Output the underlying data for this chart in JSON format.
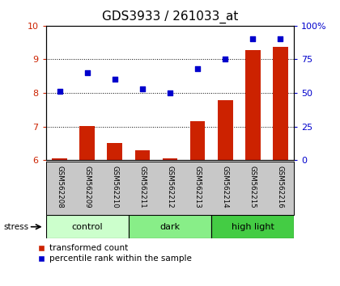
{
  "title": "GDS3933 / 261033_at",
  "samples": [
    "GSM562208",
    "GSM562209",
    "GSM562210",
    "GSM562211",
    "GSM562212",
    "GSM562213",
    "GSM562214",
    "GSM562215",
    "GSM562216"
  ],
  "transformed_count": [
    6.06,
    7.02,
    6.5,
    6.3,
    6.05,
    7.15,
    7.78,
    9.28,
    9.38
  ],
  "percentile_rank": [
    51,
    65,
    60,
    53,
    50,
    68,
    75,
    90,
    90
  ],
  "ylim_left": [
    6,
    10
  ],
  "ylim_right": [
    0,
    100
  ],
  "yticks_left": [
    6,
    7,
    8,
    9,
    10
  ],
  "yticks_right": [
    0,
    25,
    50,
    75,
    100
  ],
  "groups": [
    {
      "label": "control",
      "start": 0,
      "end": 3,
      "color": "#ccffcc"
    },
    {
      "label": "dark",
      "start": 3,
      "end": 6,
      "color": "#88ee88"
    },
    {
      "label": "high light",
      "start": 6,
      "end": 9,
      "color": "#44cc44"
    }
  ],
  "bar_color": "#cc2200",
  "dot_color": "#0000cc",
  "background_color": "#ffffff",
  "sample_bg_color": "#c8c8c8",
  "legend_bar": "transformed count",
  "legend_dot": "percentile rank within the sample",
  "title_fontsize": 11,
  "left_color": "#cc2200",
  "right_color": "#0000cc"
}
